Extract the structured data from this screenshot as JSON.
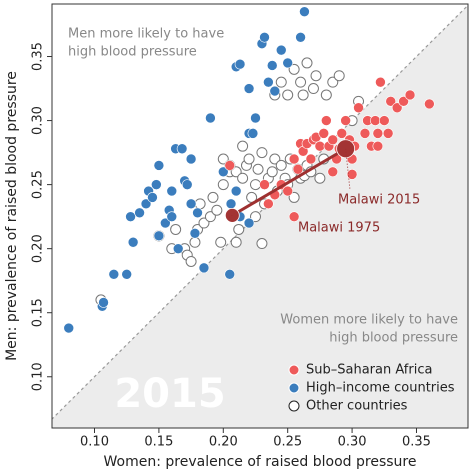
{
  "chart_data": {
    "type": "scatter",
    "xlabel": "Women: prevalence of raised blood pressure",
    "ylabel": "Men: prevalence of raised blood pressure",
    "watermark": "2015",
    "region_labels": {
      "upper": [
        "Men more likely to have",
        "high blood pressure"
      ],
      "lower": [
        "Women more likely to have",
        "high blood pressure"
      ]
    },
    "xlim": [
      0.067,
      0.39
    ],
    "ylim": [
      0.06,
      0.391
    ],
    "xticks": [
      {
        "value": 0.1,
        "label": "0.10"
      },
      {
        "value": 0.15,
        "label": "0.15"
      },
      {
        "value": 0.2,
        "label": "0.20"
      },
      {
        "value": 0.25,
        "label": "0.25"
      },
      {
        "value": 0.3,
        "label": "0.30"
      },
      {
        "value": 0.35,
        "label": "0.35"
      }
    ],
    "yticks": [
      {
        "value": 0.1,
        "label": "0.10"
      },
      {
        "value": 0.15,
        "label": "0.15"
      },
      {
        "value": 0.2,
        "label": "0.20"
      },
      {
        "value": 0.25,
        "label": "0.25"
      },
      {
        "value": 0.3,
        "label": "0.30"
      },
      {
        "value": 0.35,
        "label": "0.35"
      }
    ],
    "series": [
      {
        "name": "Sub–Saharan Africa",
        "color": "#ee5a5a",
        "x": [
          0.205,
          0.232,
          0.235,
          0.24,
          0.245,
          0.25,
          0.255,
          0.258,
          0.26,
          0.262,
          0.265,
          0.268,
          0.27,
          0.272,
          0.275,
          0.278,
          0.28,
          0.282,
          0.285,
          0.288,
          0.29,
          0.292,
          0.295,
          0.298,
          0.3,
          0.302,
          0.305,
          0.31,
          0.312,
          0.315,
          0.318,
          0.32,
          0.322,
          0.325,
          0.328,
          0.33,
          0.335,
          0.34,
          0.345,
          0.36,
          0.255,
          0.3,
          0.285,
          0.32
        ],
        "values": [
          0.265,
          0.25,
          0.235,
          0.242,
          0.25,
          0.245,
          0.27,
          0.262,
          0.282,
          0.276,
          0.282,
          0.27,
          0.285,
          0.287,
          0.28,
          0.29,
          0.3,
          0.28,
          0.26,
          0.27,
          0.278,
          0.29,
          0.3,
          0.285,
          0.27,
          0.28,
          0.31,
          0.29,
          0.3,
          0.28,
          0.3,
          0.29,
          0.33,
          0.3,
          0.29,
          0.315,
          0.31,
          0.315,
          0.32,
          0.313,
          0.225,
          0.258,
          0.285,
          0.28
        ]
      },
      {
        "name": "High–income countries",
        "color": "#3b7dbd",
        "x": [
          0.08,
          0.106,
          0.107,
          0.115,
          0.125,
          0.13,
          0.128,
          0.135,
          0.14,
          0.142,
          0.145,
          0.148,
          0.15,
          0.15,
          0.155,
          0.158,
          0.16,
          0.16,
          0.163,
          0.168,
          0.17,
          0.172,
          0.175,
          0.178,
          0.18,
          0.185,
          0.165,
          0.175,
          0.2,
          0.206,
          0.21,
          0.213,
          0.22,
          0.225,
          0.223,
          0.19,
          0.21,
          0.213,
          0.22,
          0.23,
          0.232,
          0.238,
          0.235,
          0.24,
          0.25,
          0.245,
          0.26,
          0.263,
          0.205,
          0.22
        ],
        "values": [
          0.138,
          0.155,
          0.158,
          0.18,
          0.18,
          0.205,
          0.225,
          0.228,
          0.235,
          0.245,
          0.24,
          0.25,
          0.265,
          0.21,
          0.22,
          0.23,
          0.225,
          0.245,
          0.278,
          0.278,
          0.253,
          0.25,
          0.235,
          0.212,
          0.228,
          0.185,
          0.2,
          0.27,
          0.26,
          0.235,
          0.245,
          0.225,
          0.29,
          0.302,
          0.29,
          0.302,
          0.342,
          0.344,
          0.325,
          0.36,
          0.365,
          0.343,
          0.33,
          0.323,
          0.345,
          0.355,
          0.365,
          0.385,
          0.18,
          0.22
        ]
      },
      {
        "name": "Other countries",
        "color": "#777777",
        "x": [
          0.105,
          0.15,
          0.16,
          0.163,
          0.17,
          0.172,
          0.175,
          0.178,
          0.18,
          0.182,
          0.185,
          0.19,
          0.192,
          0.195,
          0.198,
          0.2,
          0.2,
          0.205,
          0.21,
          0.212,
          0.215,
          0.218,
          0.22,
          0.222,
          0.225,
          0.227,
          0.23,
          0.232,
          0.235,
          0.238,
          0.24,
          0.242,
          0.245,
          0.248,
          0.25,
          0.252,
          0.255,
          0.258,
          0.26,
          0.263,
          0.265,
          0.268,
          0.275,
          0.278,
          0.23,
          0.24,
          0.245,
          0.25,
          0.255,
          0.26,
          0.262,
          0.265,
          0.27,
          0.272,
          0.28,
          0.285,
          0.29,
          0.305,
          0.3,
          0.21,
          0.225,
          0.215,
          0.205
        ],
        "values": [
          0.16,
          0.21,
          0.2,
          0.215,
          0.2,
          0.195,
          0.19,
          0.205,
          0.215,
          0.235,
          0.22,
          0.225,
          0.24,
          0.23,
          0.205,
          0.25,
          0.27,
          0.26,
          0.26,
          0.215,
          0.255,
          0.265,
          0.27,
          0.24,
          0.25,
          0.262,
          0.275,
          0.235,
          0.255,
          0.26,
          0.27,
          0.245,
          0.265,
          0.255,
          0.25,
          0.27,
          0.24,
          0.262,
          0.255,
          0.257,
          0.265,
          0.26,
          0.255,
          0.27,
          0.204,
          0.32,
          0.33,
          0.32,
          0.34,
          0.33,
          0.32,
          0.345,
          0.325,
          0.335,
          0.32,
          0.33,
          0.335,
          0.315,
          0.3,
          0.205,
          0.225,
          0.28,
          0.265
        ]
      }
    ],
    "annotations": [
      {
        "text": "Malawi 1975",
        "x": 0.207,
        "y": 0.226
      },
      {
        "text": "Malawi 2015",
        "x": 0.295,
        "y": 0.278
      }
    ]
  }
}
